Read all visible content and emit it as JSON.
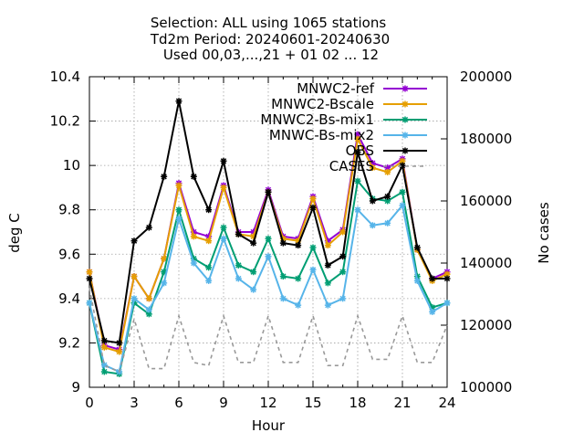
{
  "chart_data": {
    "type": "line",
    "title_lines": [
      "Selection: ALL using  1065 stations",
      "Td2m   Period: 20240601-20240630",
      "Used 00,03,...,21 + 01 02 ... 12"
    ],
    "xlabel": "Hour",
    "ylabel": "deg C",
    "y2label": "No cases",
    "xlim": [
      0,
      24
    ],
    "ylim": [
      9.0,
      10.4
    ],
    "y2lim": [
      100000,
      200000
    ],
    "x_ticks": [
      0,
      3,
      6,
      9,
      12,
      15,
      18,
      21,
      24
    ],
    "x_tick_labels": [
      "0",
      "3",
      "6",
      "9",
      "12",
      "15",
      "18",
      "21",
      "24"
    ],
    "y_ticks": [
      9.0,
      9.2,
      9.4,
      9.6,
      9.8,
      10.0,
      10.2,
      10.4
    ],
    "y_tick_labels": [
      "9",
      "9.2",
      "9.4",
      "9.6",
      "9.8",
      "10",
      "10.2",
      "10.4"
    ],
    "y2_ticks": [
      100000,
      120000,
      140000,
      160000,
      180000,
      200000
    ],
    "y2_tick_labels": [
      "100000",
      "120000",
      "140000",
      "160000",
      "180000",
      "200000"
    ],
    "grid": true,
    "legend_position": "top-right",
    "x": [
      0,
      1,
      2,
      3,
      4,
      5,
      6,
      7,
      8,
      9,
      10,
      11,
      12,
      13,
      14,
      15,
      16,
      17,
      18,
      19,
      20,
      21,
      22,
      23,
      24
    ],
    "series": [
      {
        "name": "MNWC2-ref",
        "color": "#9400d3",
        "axis": "y1",
        "style": "line-points",
        "values": [
          9.52,
          9.19,
          9.17,
          9.5,
          9.4,
          9.58,
          9.92,
          9.7,
          9.68,
          9.91,
          9.7,
          9.7,
          9.89,
          9.68,
          9.67,
          9.86,
          9.66,
          9.71,
          10.14,
          10.01,
          9.99,
          10.03,
          9.62,
          9.49,
          9.52
        ]
      },
      {
        "name": "MNWC2-Bscale",
        "color": "#e69f00",
        "axis": "y1",
        "style": "line-points",
        "values": [
          9.52,
          9.18,
          9.16,
          9.5,
          9.4,
          9.58,
          9.91,
          9.68,
          9.66,
          9.9,
          9.69,
          9.68,
          9.88,
          9.67,
          9.66,
          9.85,
          9.64,
          9.7,
          10.12,
          9.99,
          9.97,
          10.02,
          9.62,
          9.48,
          9.51
        ]
      },
      {
        "name": "MNWC2-Bs-mix1",
        "color": "#009e73",
        "axis": "y1",
        "style": "line-points",
        "values": [
          9.38,
          9.07,
          9.06,
          9.38,
          9.33,
          9.52,
          9.8,
          9.58,
          9.54,
          9.72,
          9.55,
          9.52,
          9.67,
          9.5,
          9.49,
          9.63,
          9.47,
          9.52,
          9.93,
          9.85,
          9.84,
          9.88,
          9.5,
          9.36,
          9.38
        ]
      },
      {
        "name": "MNWC-Bs-mix2",
        "color": "#56b4e9",
        "axis": "y1",
        "style": "line-points",
        "values": [
          9.38,
          9.1,
          9.07,
          9.4,
          9.35,
          9.47,
          9.76,
          9.56,
          9.48,
          9.67,
          9.49,
          9.44,
          9.59,
          9.4,
          9.37,
          9.53,
          9.37,
          9.4,
          9.8,
          9.73,
          9.74,
          9.82,
          9.48,
          9.34,
          9.38
        ]
      },
      {
        "name": "OBS",
        "color": "#000000",
        "axis": "y1",
        "style": "line-points",
        "values": [
          9.49,
          9.21,
          9.2,
          9.66,
          9.72,
          9.95,
          10.29,
          9.95,
          9.8,
          10.02,
          9.69,
          9.65,
          9.88,
          9.65,
          9.64,
          9.81,
          9.55,
          9.59,
          10.06,
          9.84,
          9.86,
          10.0,
          9.63,
          9.49,
          9.49
        ]
      },
      {
        "name": "CASES",
        "color": "#999999",
        "axis": "y2",
        "style": "dashed",
        "values": [
          132000,
          107000,
          105000,
          122000,
          106000,
          106000,
          123000,
          108000,
          107000,
          123000,
          108000,
          108000,
          123000,
          108000,
          108000,
          123000,
          107000,
          107000,
          123000,
          109000,
          109000,
          123000,
          108000,
          108000,
          120000
        ]
      }
    ]
  }
}
